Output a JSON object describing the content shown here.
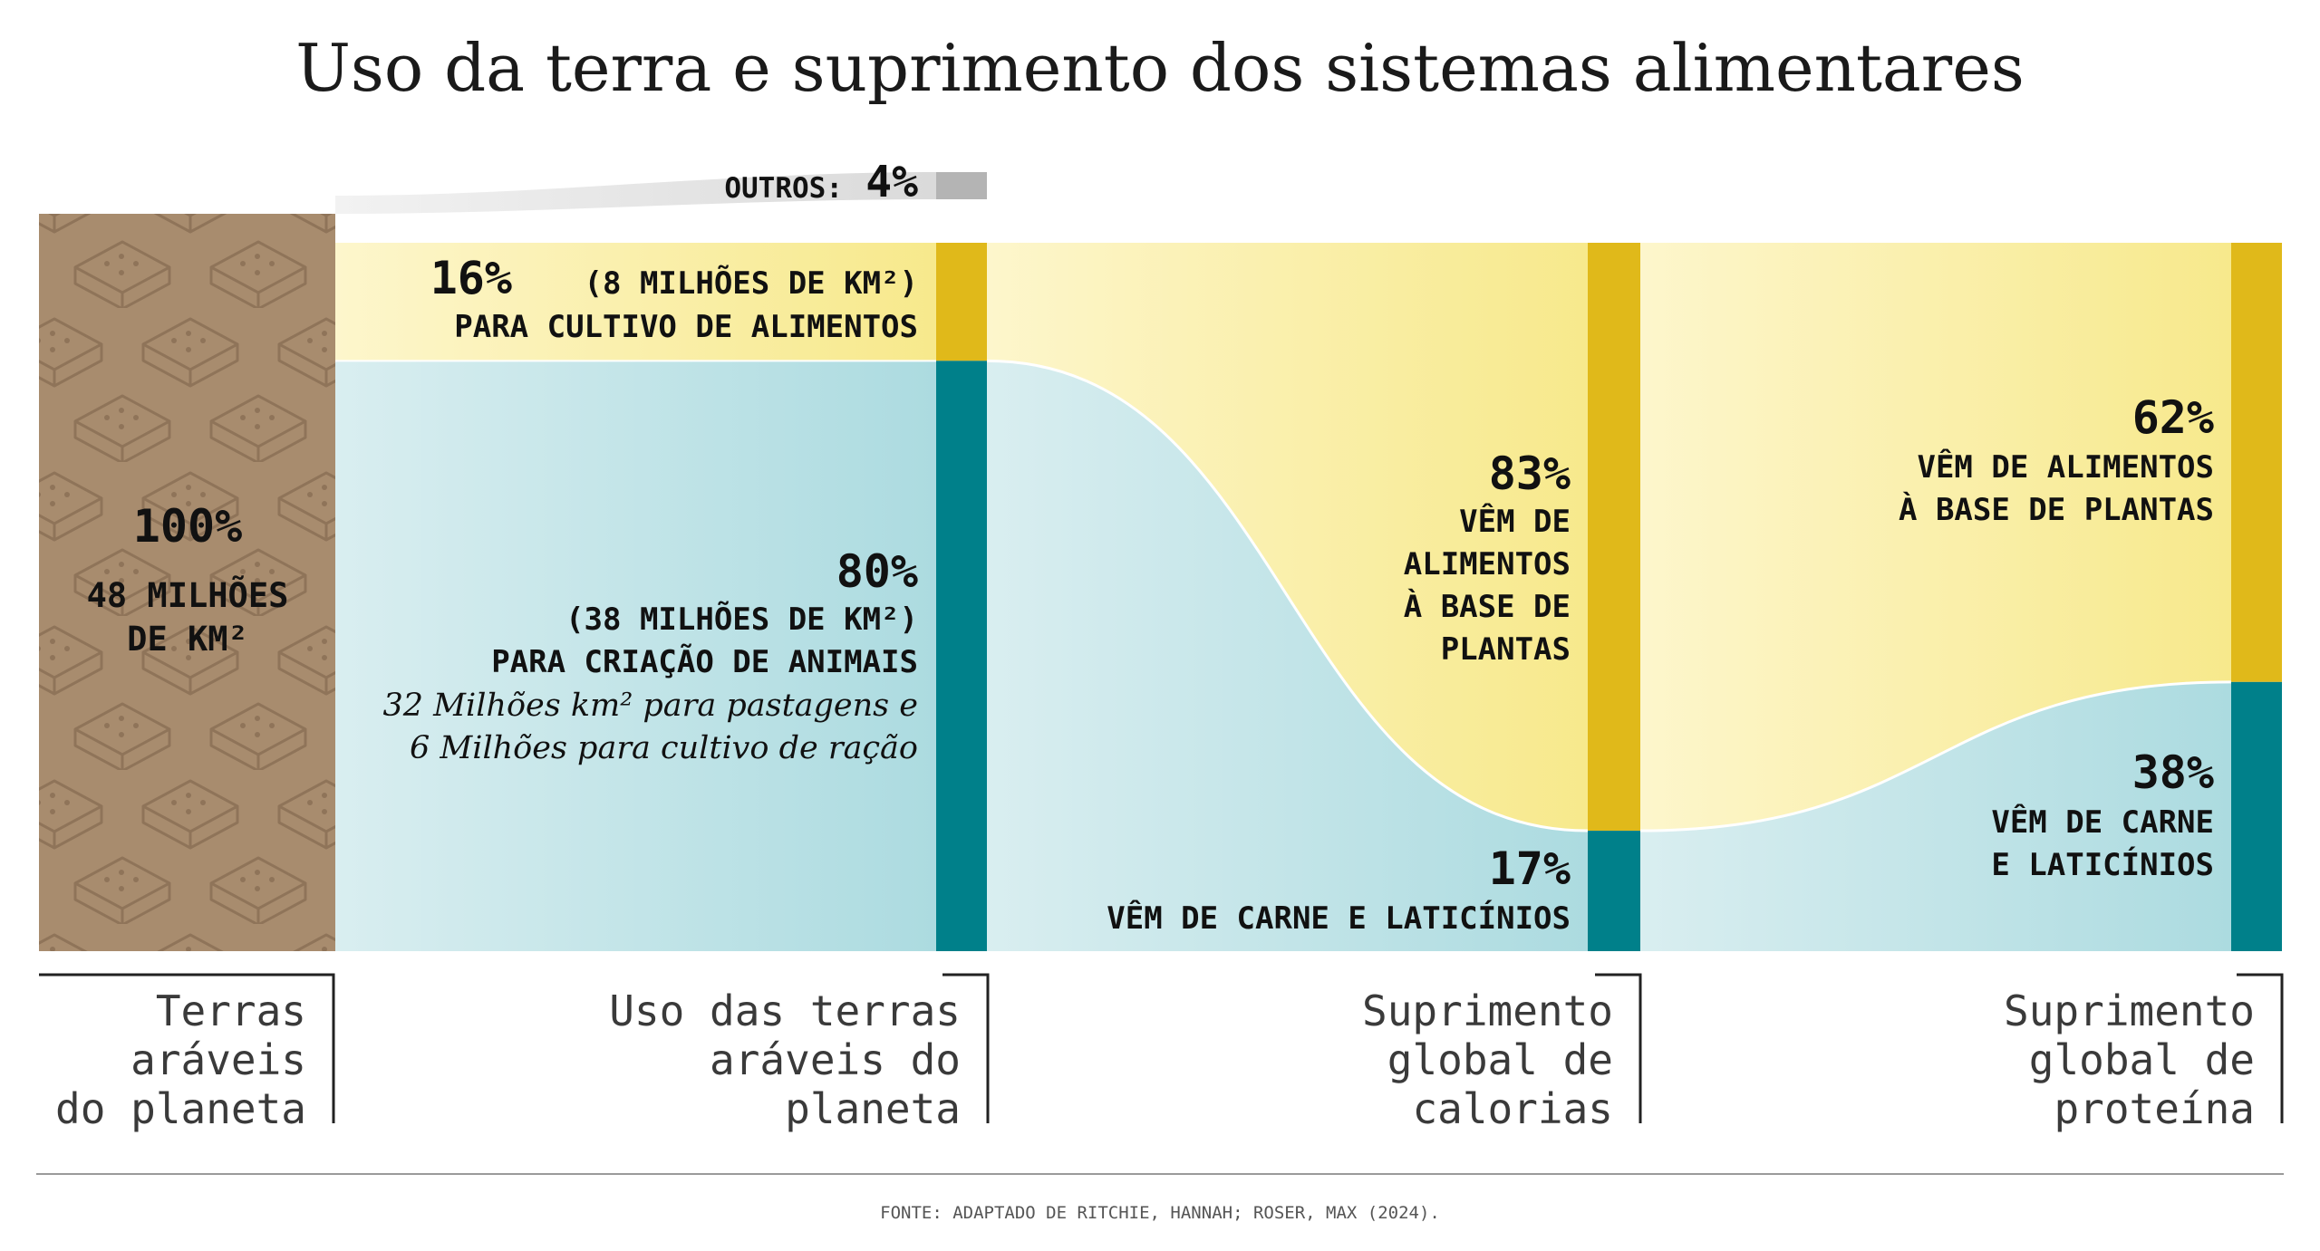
{
  "title": "Uso da terra e suprimento dos sistemas alimentares",
  "source": "FONTE: ADAPTADO DE RITCHIE, HANNAH; ROSER, MAX (2024).",
  "colors": {
    "land": "#a88c6e",
    "plant": "#e0b91a",
    "plant_light": "#fbf0a8",
    "animal": "#00808a",
    "animal_light": "#bfe1e5",
    "other": "#b4b4b4"
  },
  "chart_data": {
    "type": "sankey",
    "title": "Uso da terra e suprimento dos sistemas alimentares",
    "stages": [
      {
        "id": "terras",
        "label": "Terras aráveis do planeta",
        "label_lines": [
          "Terras",
          "aráveis",
          "do planeta"
        ]
      },
      {
        "id": "uso",
        "label": "Uso das terras aráveis do planeta",
        "label_lines": [
          "Uso das terras",
          "aráveis do",
          "planeta"
        ]
      },
      {
        "id": "calorias",
        "label": "Suprimento global de calorias",
        "label_lines": [
          "Suprimento",
          "global de",
          "calorias"
        ]
      },
      {
        "id": "proteina",
        "label": "Suprimento global de proteína",
        "label_lines": [
          "Suprimento",
          "global de",
          "proteína"
        ]
      }
    ],
    "total": {
      "percent": 100,
      "pct_label": "100%",
      "area_label_lines": [
        "48 MILHÕES",
        "DE KM²"
      ],
      "area_million_km2": 48
    },
    "land_use": [
      {
        "category": "outros",
        "percent": 4,
        "label": "OUTROS:",
        "pct_label": "4%"
      },
      {
        "category": "plant",
        "percent": 16,
        "pct_label": "16%",
        "detail": "(8 MILHÕES DE KM²)",
        "desc": "PARA CULTIVO DE ALIMENTOS",
        "area_million_km2": 8
      },
      {
        "category": "animal",
        "percent": 80,
        "pct_label": "80%",
        "detail": "(38 MILHÕES DE KM²)",
        "desc": "PARA CRIAÇÃO DE ANIMAIS",
        "area_million_km2": 38,
        "note_lines": [
          "32 Milhões km² para pastagens e",
          "6 Milhões para cultivo de ração"
        ]
      }
    ],
    "calories": [
      {
        "category": "plant",
        "percent": 83,
        "pct_label": "83%",
        "desc_lines": [
          "VÊM DE",
          "ALIMENTOS",
          "À BASE DE",
          "PLANTAS"
        ]
      },
      {
        "category": "animal",
        "percent": 17,
        "pct_label": "17%",
        "desc_lines": [
          "VÊM DE CARNE E LATICÍNIOS"
        ]
      }
    ],
    "protein": [
      {
        "category": "plant",
        "percent": 62,
        "pct_label": "62%",
        "desc_lines": [
          "VÊM DE ALIMENTOS",
          "À BASE DE PLANTAS"
        ]
      },
      {
        "category": "animal",
        "percent": 38,
        "pct_label": "38%",
        "desc_lines": [
          "VÊM DE CARNE",
          "E LATICÍNIOS"
        ]
      }
    ]
  }
}
